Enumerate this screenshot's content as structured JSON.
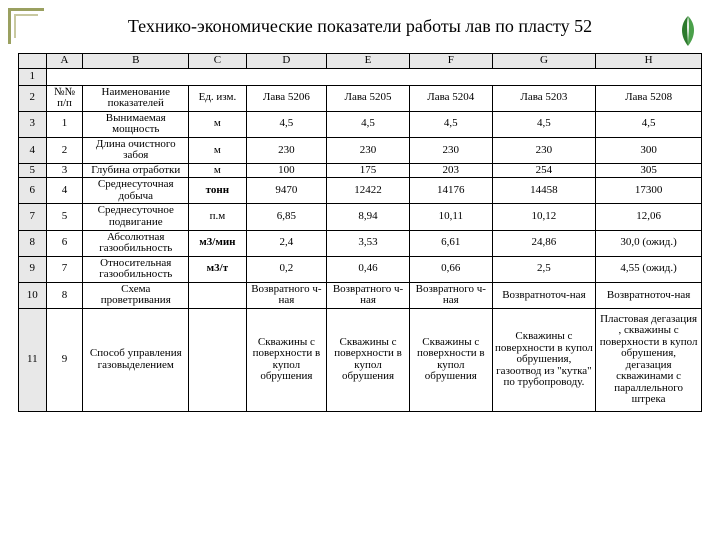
{
  "title": "Технико-экономические показатели работы лав по пласту 52",
  "column_letters": [
    "A",
    "B",
    "C",
    "D",
    "E",
    "F",
    "G",
    "H"
  ],
  "row_numbers": [
    "1",
    "2",
    "3",
    "4",
    "5",
    "6",
    "7",
    "8",
    "9",
    "10",
    "11"
  ],
  "header": {
    "npp": "№№ п/п",
    "name": "Наименование показателей",
    "unit": "Ед. изм.",
    "lava1": "Лава 5206",
    "lava2": "Лава 5205",
    "lava3": "Лава 5204",
    "lava4": "Лава 5203",
    "lava5": "Лава 5208"
  },
  "rows": [
    {
      "n": "1",
      "name": "Вынимаемая мощность",
      "unit": "м",
      "v": [
        "4,5",
        "4,5",
        "4,5",
        "4,5",
        "4,5"
      ]
    },
    {
      "n": "2",
      "name": "Длина очистного забоя",
      "unit": "м",
      "v": [
        "230",
        "230",
        "230",
        "230",
        "300"
      ]
    },
    {
      "n": "3",
      "name": "Глубина отработки",
      "unit": "м",
      "v": [
        "100",
        "175",
        "203",
        "254",
        "305"
      ]
    },
    {
      "n": "4",
      "name": "Среднесуточная добыча",
      "unit": "тонн",
      "v": [
        "9470",
        "12422",
        "14176",
        "14458",
        "17300"
      ],
      "bold": true
    },
    {
      "n": "5",
      "name": "Среднесуточное подвигание",
      "unit": "п.м",
      "v": [
        "6,85",
        "8,94",
        "10,11",
        "10,12",
        "12,06"
      ]
    },
    {
      "n": "6",
      "name": "Абсолютная газообильность",
      "unit": "м3/мин",
      "v": [
        "2,4",
        "3,53",
        "6,61",
        "24,86",
        "30,0 (ожид.)"
      ],
      "bold": true
    },
    {
      "n": "7",
      "name": "Относительная газообильность",
      "unit": "м3/т",
      "v": [
        "0,2",
        "0,46",
        "0,66",
        "2,5",
        "4,55 (ожид.)"
      ],
      "bold": true
    },
    {
      "n": "8",
      "name": "Схема проветривания",
      "unit": "",
      "v": [
        "Возвратного ч- ная",
        "Возвратного ч- ная",
        "Возвратного ч- ная",
        "Возвратноточ-ная",
        "Возвратноточ-ная"
      ]
    },
    {
      "n": "9",
      "name": "Способ управления газовыделением",
      "unit": "",
      "v": [
        "Скважины с поверхности в купол обрушения",
        "Скважины с поверхности в купол обрушения",
        "Скважины с поверхности в купол обрушения",
        "Скважины с поверхности в купол обрушения, газоотвод из \"кутка\" по трубопроводу.",
        "Пластовая дегазация , скважины с поверхности в купол обрушения, дегазация скважинами с параллельного штрека"
      ],
      "tall": true
    }
  ],
  "colors": {
    "corner": "#9aa060",
    "grid_header_bg": "#e8e8e8",
    "logo_green": "#2d7a2d"
  }
}
